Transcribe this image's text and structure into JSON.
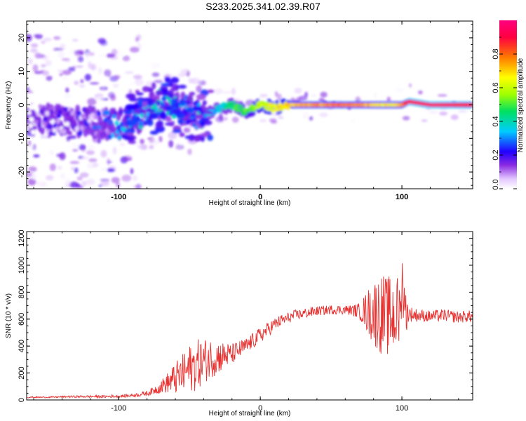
{
  "title": "S233.2025.341.02.39.R07",
  "chart_data": [
    {
      "type": "heatmap",
      "name": "spectrogram",
      "xlabel": "Height of straight line (km)",
      "ylabel": "Frequency (Hz)",
      "xlim": [
        -165,
        150
      ],
      "ylim": [
        -25,
        25
      ],
      "xticks": [
        -100,
        0,
        100
      ],
      "xtick_labels": [
        "-100",
        "0",
        "100"
      ],
      "yticks": [
        -20,
        -10,
        0,
        10,
        20
      ],
      "ytick_labels": [
        "-20",
        "-10",
        "0",
        "10",
        "20"
      ],
      "colorbar": {
        "label": "Normalized spectral amplitude",
        "range": [
          0,
          1
        ],
        "ticks": [
          0,
          0.2,
          0.4,
          0.6,
          0.8
        ],
        "tick_labels": [
          "0.0",
          "0.2",
          "0.4",
          "0.6",
          "0.8"
        ],
        "colors": [
          "#ffffff",
          "#e3c6ff",
          "#8a2be2",
          "#2200ff",
          "#00ccff",
          "#00e060",
          "#a0ff00",
          "#ffff00",
          "#ff7a00",
          "#ff0040",
          "#ff0080"
        ]
      },
      "ridge": {
        "x": [
          -165,
          -140,
          -120,
          -100,
          -90,
          -80,
          -70,
          -60,
          -50,
          -40,
          -30,
          -20,
          -10,
          -5,
          0,
          10,
          20,
          40,
          60,
          80,
          95,
          100,
          105,
          120,
          150
        ],
        "freq": [
          -4,
          -5,
          -5,
          -6,
          -5,
          -2,
          1,
          0,
          -2,
          -3,
          -1,
          0,
          -2,
          -1,
          0,
          -1,
          0,
          0,
          0,
          0,
          0,
          0,
          1,
          0,
          0
        ],
        "amplitude": [
          0.05,
          0.1,
          0.15,
          0.25,
          0.3,
          0.3,
          0.35,
          0.3,
          0.3,
          0.3,
          0.35,
          0.45,
          0.5,
          0.55,
          0.6,
          0.65,
          0.7,
          0.75,
          0.8,
          0.7,
          0.65,
          0.75,
          0.95,
          0.95,
          0.9
        ]
      }
    },
    {
      "type": "line",
      "name": "snr",
      "xlabel": "Height of straight line (km)",
      "ylabel": "SNR (10 * v/v)",
      "xlim": [
        -165,
        150
      ],
      "ylim": [
        0,
        1250
      ],
      "xticks": [
        -100,
        0,
        100
      ],
      "xtick_labels": [
        "-100",
        "0",
        "100"
      ],
      "yticks": [
        0,
        200,
        400,
        600,
        800,
        1000,
        1200
      ],
      "ytick_labels": [
        "0",
        "200",
        "400",
        "600",
        "800",
        "1000",
        "1200"
      ],
      "series": [
        {
          "name": "SNR",
          "color": "#e8302f",
          "x": [
            -165,
            -150,
            -130,
            -110,
            -95,
            -85,
            -80,
            -75,
            -70,
            -65,
            -60,
            -55,
            -50,
            -45,
            -40,
            -35,
            -30,
            -25,
            -20,
            -15,
            -10,
            -5,
            0,
            5,
            10,
            15,
            20,
            25,
            30,
            35,
            40,
            45,
            50,
            55,
            60,
            65,
            70,
            75,
            80,
            85,
            90,
            95,
            100,
            102,
            105,
            110,
            115,
            120,
            125,
            130,
            135,
            140,
            145,
            150
          ],
          "values": [
            20,
            20,
            25,
            25,
            30,
            40,
            50,
            70,
            100,
            130,
            160,
            190,
            230,
            260,
            290,
            310,
            320,
            330,
            340,
            370,
            400,
            440,
            480,
            520,
            560,
            590,
            610,
            630,
            640,
            650,
            660,
            665,
            670,
            670,
            670,
            665,
            660,
            655,
            650,
            640,
            620,
            630,
            640,
            660,
            640,
            630,
            625,
            620,
            625,
            630,
            620,
            615,
            620,
            620
          ],
          "noise": [
            5,
            5,
            8,
            10,
            12,
            15,
            20,
            30,
            50,
            80,
            120,
            150,
            180,
            190,
            170,
            150,
            130,
            100,
            80,
            70,
            60,
            60,
            60,
            55,
            50,
            45,
            40,
            40,
            40,
            40,
            35,
            35,
            35,
            35,
            35,
            40,
            60,
            150,
            250,
            300,
            300,
            300,
            280,
            200,
            60,
            50,
            45,
            45,
            45,
            45,
            45,
            45,
            45,
            45
          ]
        }
      ]
    }
  ]
}
